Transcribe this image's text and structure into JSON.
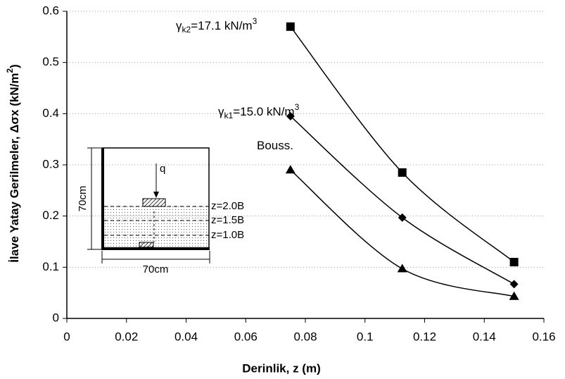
{
  "chart_data": {
    "type": "line",
    "xlabel": "Derinlik, z (m)",
    "ylabel": [
      "İlave Yatay Gerilmeler, Δσx (kN/m",
      "2",
      ")"
    ],
    "x": [
      0.075,
      0.1125,
      0.15
    ],
    "series": [
      {
        "marker": "square",
        "color": "#000000",
        "values": [
          0.57,
          0.285,
          0.11
        ]
      },
      {
        "marker": "diamond",
        "color": "#000000",
        "values": [
          0.395,
          0.197,
          0.067
        ]
      },
      {
        "marker": "triangle",
        "color": "#000000",
        "values": [
          0.29,
          0.097,
          0.043
        ]
      }
    ],
    "annotations": [
      {
        "parts": [
          "γ",
          "k2",
          "=17.1 kN/m",
          "3"
        ]
      },
      {
        "parts": [
          "γ",
          "k1",
          "=15.0 kN/m",
          "3"
        ]
      },
      {
        "parts": [
          "Bouss."
        ]
      }
    ],
    "xlim": [
      0,
      0.16
    ],
    "xticks": [
      0,
      0.02,
      0.04,
      0.06,
      0.08,
      0.1,
      0.12,
      0.14,
      0.16
    ],
    "ylim": [
      0,
      0.6
    ],
    "yticks": [
      0,
      0.1,
      0.2,
      0.3,
      0.4,
      0.5,
      0.6
    ],
    "grid": true,
    "inset": {
      "load": "q",
      "height": "70cm",
      "width": "70cm",
      "levels": [
        "z=2.0B",
        "z=1.5B",
        "z=1.0B"
      ]
    }
  }
}
